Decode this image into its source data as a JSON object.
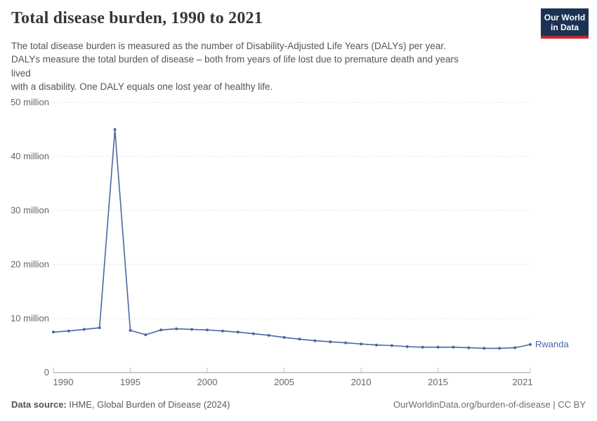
{
  "header": {
    "title": "Total disease burden, 1990 to 2021",
    "subtitle_lines": [
      "The total disease burden is measured as the number of Disability-Adjusted Life Years (DALYs) per year.",
      "DALYs measure the total burden of disease – both from years of life lost due to premature death and years",
      "lived",
      "with a disability. One DALY equals one lost year of healthy life."
    ],
    "logo": {
      "line1": "Our World",
      "line2": "in Data",
      "bg_color": "#1c3254",
      "bar_color": "#c4262c"
    }
  },
  "footer": {
    "source_label": "Data source:",
    "source_value": "IHME, Global Burden of Disease (2024)",
    "license": "OurWorldinData.org/burden-of-disease | CC BY"
  },
  "chart_data": {
    "type": "line",
    "title": "Total disease burden, 1990 to 2021",
    "xlabel": "",
    "ylabel": "Disability-Adjusted Life Years (DALYs) per year",
    "unit": "DALYs (millions)",
    "grid": "horizontal-dashed",
    "legend": "end-of-line-label",
    "xlim": [
      1990,
      2021
    ],
    "ylim_millions": [
      0,
      50
    ],
    "x": [
      1990,
      1991,
      1992,
      1993,
      1994,
      1995,
      1996,
      1997,
      1998,
      1999,
      2000,
      2001,
      2002,
      2003,
      2004,
      2005,
      2006,
      2007,
      2008,
      2009,
      2010,
      2011,
      2012,
      2013,
      2014,
      2015,
      2016,
      2017,
      2018,
      2019,
      2020,
      2021
    ],
    "series": [
      {
        "name": "Rwanda",
        "color": "#4a67a5",
        "values_millions": [
          7.5,
          7.7,
          8.0,
          8.3,
          45.0,
          7.8,
          7.0,
          7.9,
          8.1,
          8.0,
          7.9,
          7.7,
          7.5,
          7.2,
          6.9,
          6.5,
          6.2,
          5.9,
          5.7,
          5.5,
          5.3,
          5.1,
          5.0,
          4.8,
          4.7,
          4.7,
          4.7,
          4.6,
          4.5,
          4.5,
          4.6,
          5.2
        ]
      }
    ],
    "yticks": [
      {
        "value": 0,
        "label": "0"
      },
      {
        "value": 10,
        "label": "10 million"
      },
      {
        "value": 20,
        "label": "20 million"
      },
      {
        "value": 30,
        "label": "30 million"
      },
      {
        "value": 40,
        "label": "40 million"
      },
      {
        "value": 50,
        "label": "50 million"
      }
    ],
    "xticks": [
      {
        "value": 1990,
        "label": "1990"
      },
      {
        "value": 1995,
        "label": "1995"
      },
      {
        "value": 2000,
        "label": "2000"
      },
      {
        "value": 2005,
        "label": "2005"
      },
      {
        "value": 2010,
        "label": "2010"
      },
      {
        "value": 2015,
        "label": "2015"
      },
      {
        "value": 2021,
        "label": "2021"
      }
    ]
  }
}
